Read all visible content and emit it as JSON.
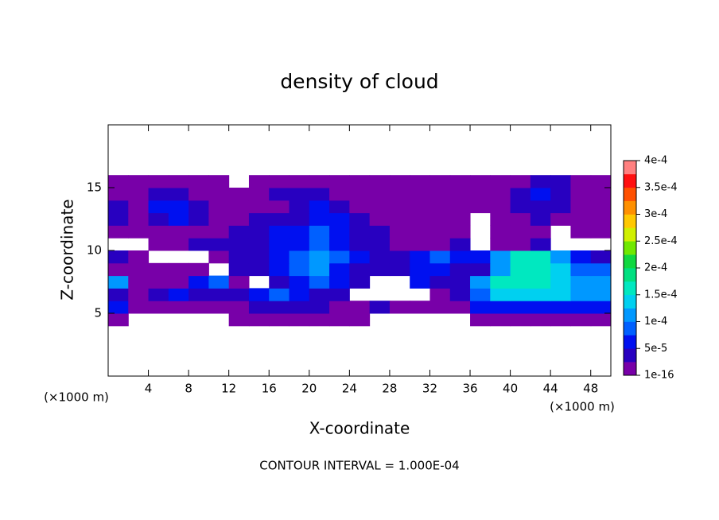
{
  "chart_data": {
    "type": "heatmap",
    "title": "density of cloud",
    "x_label": "X-coordinate",
    "y_label": "Z-coordinate",
    "x_unit": "(×1000 m)",
    "y_unit": "(×1000 m)",
    "footer": "CONTOUR INTERVAL = 1.000E-04",
    "xlim": [
      0,
      50
    ],
    "xticks": [
      4,
      8,
      12,
      16,
      20,
      24,
      28,
      32,
      36,
      40,
      44,
      48
    ],
    "ylim": [
      0,
      20
    ],
    "yticks": [
      5,
      10,
      15
    ],
    "x": [
      1,
      3,
      5,
      7,
      9,
      11,
      13,
      15,
      17,
      19,
      21,
      23,
      25,
      27,
      29,
      31,
      33,
      35,
      37,
      39,
      41,
      43,
      45,
      47,
      49
    ],
    "y": [
      4.5,
      5.5,
      6.5,
      7.5,
      8.5,
      9.5,
      10.5,
      11.5,
      12.5,
      13.5,
      14.5,
      15.5
    ],
    "z": [
      [
        1e-05,
        null,
        null,
        null,
        null,
        null,
        1e-05,
        1e-05,
        1e-05,
        1e-05,
        1e-05,
        1e-05,
        1e-05,
        null,
        null,
        null,
        null,
        null,
        1e-05,
        1e-05,
        1e-05,
        1e-05,
        1e-05,
        1e-05,
        1e-05
      ],
      [
        6e-05,
        1e-05,
        1e-05,
        1e-05,
        1e-05,
        1e-05,
        1e-05,
        3e-05,
        3e-05,
        3e-05,
        3e-05,
        1e-05,
        1e-05,
        3e-05,
        1e-05,
        1e-05,
        1e-05,
        1e-05,
        6e-05,
        6e-05,
        6e-05,
        6e-05,
        6e-05,
        6e-05,
        6e-05
      ],
      [
        3e-05,
        1e-05,
        3e-05,
        6e-05,
        3e-05,
        3e-05,
        3e-05,
        6e-05,
        9e-05,
        6e-05,
        3e-05,
        3e-05,
        null,
        null,
        null,
        null,
        1e-05,
        3e-05,
        9e-05,
        0.00014,
        0.00014,
        0.00014,
        0.00014,
        0.00012,
        0.00012
      ],
      [
        0.00012,
        1e-05,
        1e-05,
        1e-05,
        6e-05,
        9e-05,
        1e-05,
        null,
        3e-05,
        6e-05,
        9e-05,
        6e-05,
        3e-05,
        null,
        null,
        6e-05,
        3e-05,
        3e-05,
        0.00012,
        0.00017,
        0.00017,
        0.00017,
        0.00014,
        0.00012,
        0.00012
      ],
      [
        1e-05,
        1e-05,
        1e-05,
        1e-05,
        1e-05,
        null,
        3e-05,
        3e-05,
        6e-05,
        9e-05,
        0.00012,
        6e-05,
        3e-05,
        3e-05,
        3e-05,
        6e-05,
        6e-05,
        3e-05,
        3e-05,
        0.00012,
        0.00017,
        0.00017,
        0.00014,
        9e-05,
        9e-05
      ],
      [
        3e-05,
        1e-05,
        null,
        null,
        null,
        1e-05,
        3e-05,
        3e-05,
        6e-05,
        9e-05,
        0.00012,
        9e-05,
        6e-05,
        3e-05,
        3e-05,
        6e-05,
        9e-05,
        6e-05,
        6e-05,
        0.00012,
        0.00017,
        0.00017,
        0.00012,
        6e-05,
        3e-05
      ],
      [
        null,
        null,
        1e-05,
        1e-05,
        3e-05,
        3e-05,
        3e-05,
        3e-05,
        6e-05,
        6e-05,
        9e-05,
        6e-05,
        3e-05,
        3e-05,
        1e-05,
        1e-05,
        1e-05,
        3e-05,
        null,
        1e-05,
        1e-05,
        3e-05,
        null,
        null,
        null
      ],
      [
        1e-05,
        1e-05,
        1e-05,
        1e-05,
        1e-05,
        1e-05,
        3e-05,
        3e-05,
        6e-05,
        6e-05,
        9e-05,
        6e-05,
        3e-05,
        3e-05,
        1e-05,
        1e-05,
        1e-05,
        1e-05,
        null,
        1e-05,
        1e-05,
        1e-05,
        null,
        1e-05,
        1e-05
      ],
      [
        3e-05,
        1e-05,
        3e-05,
        6e-05,
        3e-05,
        1e-05,
        1e-05,
        3e-05,
        3e-05,
        3e-05,
        6e-05,
        6e-05,
        3e-05,
        1e-05,
        1e-05,
        1e-05,
        1e-05,
        1e-05,
        null,
        1e-05,
        1e-05,
        3e-05,
        1e-05,
        1e-05,
        1e-05
      ],
      [
        3e-05,
        1e-05,
        6e-05,
        6e-05,
        3e-05,
        1e-05,
        1e-05,
        1e-05,
        1e-05,
        3e-05,
        6e-05,
        3e-05,
        1e-05,
        1e-05,
        1e-05,
        1e-05,
        1e-05,
        1e-05,
        1e-05,
        1e-05,
        3e-05,
        3e-05,
        3e-05,
        1e-05,
        1e-05
      ],
      [
        1e-05,
        1e-05,
        3e-05,
        3e-05,
        1e-05,
        1e-05,
        1e-05,
        1e-05,
        3e-05,
        3e-05,
        3e-05,
        1e-05,
        1e-05,
        1e-05,
        1e-05,
        1e-05,
        1e-05,
        1e-05,
        1e-05,
        1e-05,
        3e-05,
        6e-05,
        3e-05,
        1e-05,
        1e-05
      ],
      [
        1e-05,
        1e-05,
        1e-05,
        1e-05,
        1e-05,
        1e-05,
        null,
        1e-05,
        1e-05,
        1e-05,
        1e-05,
        1e-05,
        1e-05,
        1e-05,
        1e-05,
        1e-05,
        1e-05,
        1e-05,
        1e-05,
        1e-05,
        1e-05,
        3e-05,
        3e-05,
        1e-05,
        1e-05
      ]
    ],
    "colors": [
      "#7800a8",
      "#2800c0",
      "#0010f0",
      "#0060ff",
      "#0098ff",
      "#00d0f0",
      "#00e8c0",
      "#00e080",
      "#10d840",
      "#70e800",
      "#d0f000",
      "#ffc800",
      "#ff9000",
      "#ff5000",
      "#ff1010",
      "#ff8080"
    ],
    "clim": [
      1e-16,
      0.0004
    ],
    "cticks": [
      {
        "value": 1e-16,
        "label": "1e-16"
      },
      {
        "value": 5e-05,
        "label": "5e-5"
      },
      {
        "value": 0.0001,
        "label": "1e-4"
      },
      {
        "value": 0.00015,
        "label": "1.5e-4"
      },
      {
        "value": 0.0002,
        "label": "2e-4"
      },
      {
        "value": 0.00025,
        "label": "2.5e-4"
      },
      {
        "value": 0.0003,
        "label": "3e-4"
      },
      {
        "value": 0.00035,
        "label": "3.5e-4"
      },
      {
        "value": 0.0004,
        "label": "4e-4"
      }
    ]
  }
}
